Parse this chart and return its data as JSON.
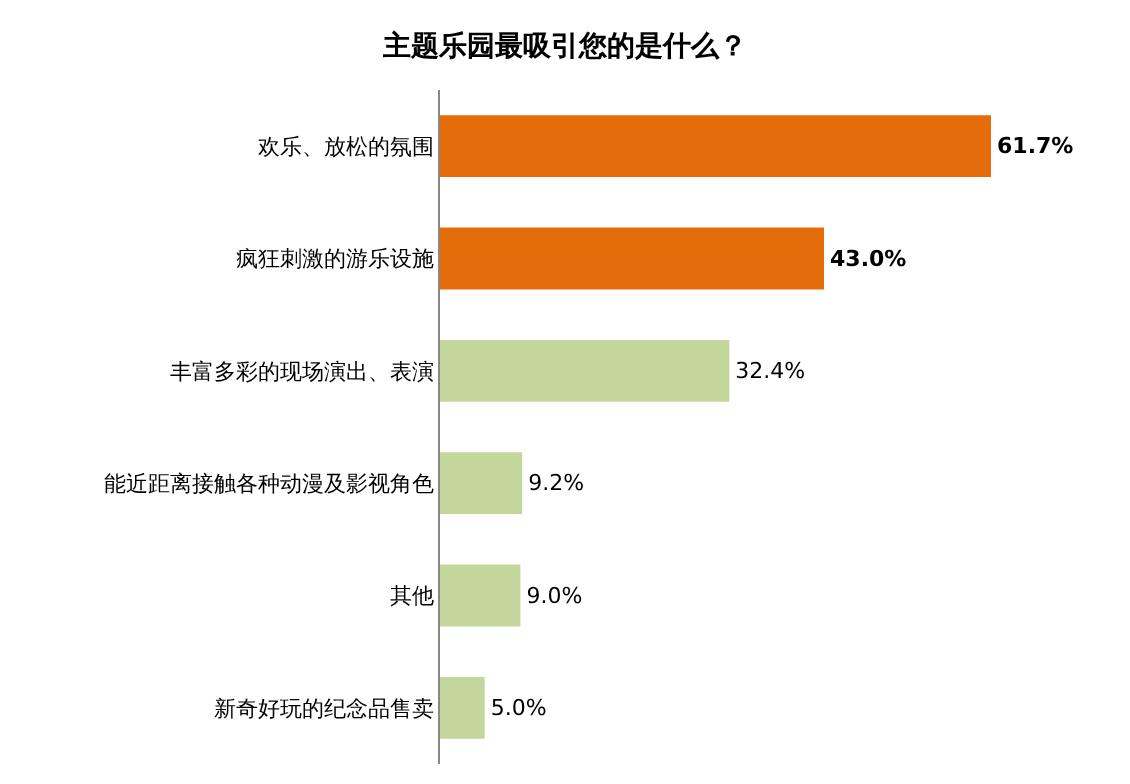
{
  "chart_data": {
    "type": "bar",
    "orientation": "horizontal",
    "title": "主题乐园最吸引您的是什么？",
    "categories": [
      "欢乐、放松的氛围",
      "疯狂刺激的游乐设施",
      "丰富多彩的现场演出、表演",
      "能近距离接触各种动漫及影视角色",
      "其他",
      "新奇好玩的纪念品售卖"
    ],
    "values": [
      61.7,
      43.0,
      32.4,
      9.2,
      9.0,
      5.0
    ],
    "value_labels": [
      "61.7%",
      "43.0%",
      "32.4%",
      "9.2%",
      "9.0%",
      "5.0%"
    ],
    "colors": [
      "#e46c0a",
      "#e46c0a",
      "#c3d69b",
      "#c3d69b",
      "#c3d69b",
      "#c3d69b"
    ],
    "tick_labels": "y"
  }
}
